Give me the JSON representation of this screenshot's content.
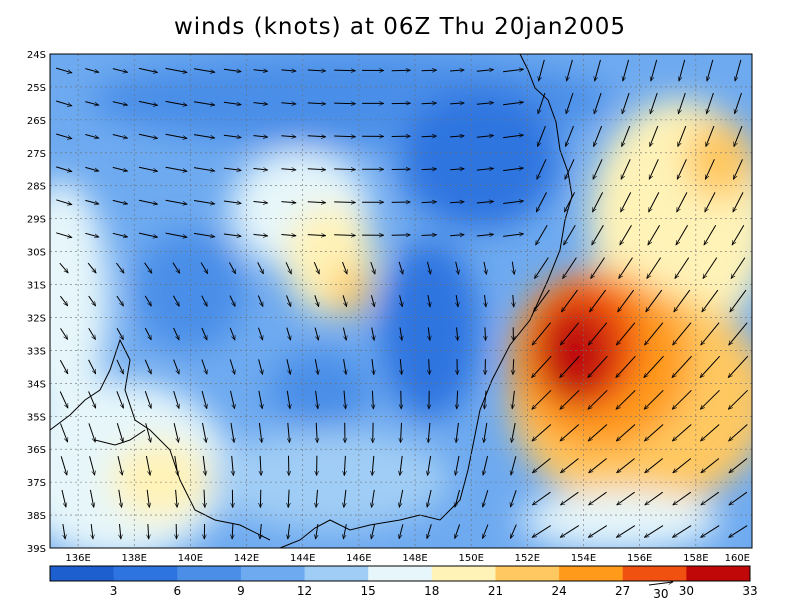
{
  "title": "winds (knots) at 06Z Thu 20jan2005",
  "map": {
    "lon_range": [
      135,
      160
    ],
    "lat_range": [
      -39,
      -24
    ],
    "lon_ticks": [
      "136E",
      "138E",
      "140E",
      "142E",
      "144E",
      "146E",
      "148E",
      "150E",
      "152E",
      "154E",
      "156E",
      "158E",
      "160E"
    ],
    "lat_ticks": [
      "24S",
      "25S",
      "26S",
      "27S",
      "28S",
      "29S",
      "30S",
      "31S",
      "32S",
      "33S",
      "34S",
      "35S",
      "36S",
      "37S",
      "38S",
      "39S"
    ],
    "grid": "dotted",
    "field": "wind speed",
    "units": "knots"
  },
  "colorbar": {
    "labels": [
      "3",
      "6",
      "9",
      "12",
      "15",
      "18",
      "21",
      "24",
      "27",
      "30",
      "33"
    ],
    "colors": [
      "#1e5fd0",
      "#2e74e0",
      "#4a8ee8",
      "#6eaaf0",
      "#a0cdf5",
      "#e6f6fa",
      "#fff3b8",
      "#ffc860",
      "#ff9a1a",
      "#f05010",
      "#c00808"
    ],
    "reference_vector": "30"
  }
}
